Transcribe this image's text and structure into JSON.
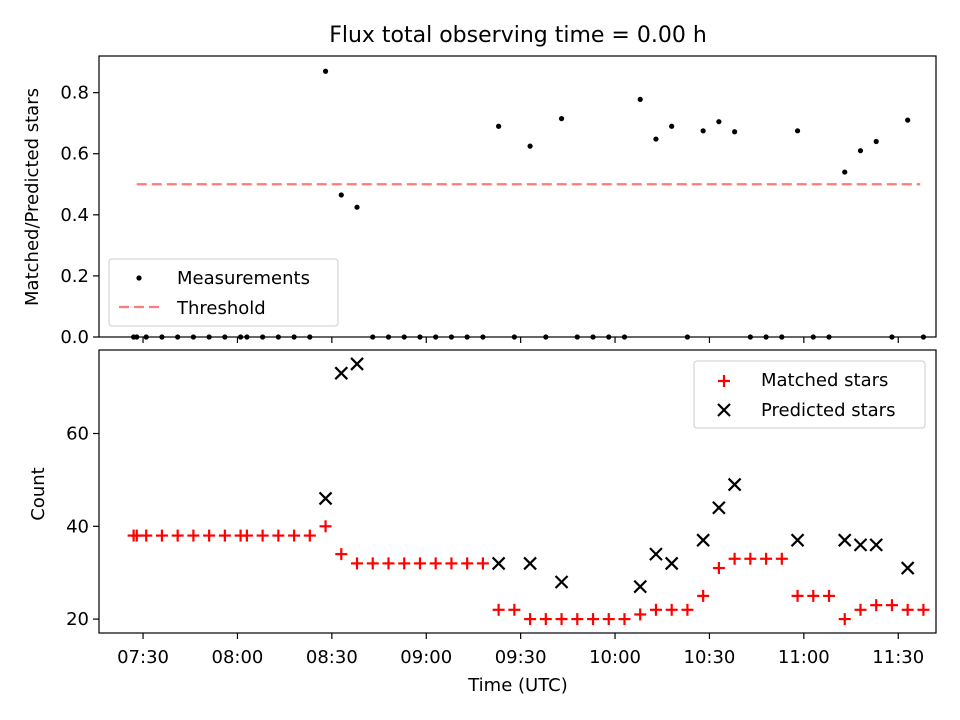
{
  "chart_data": {
    "title": "Flux total observing time = 0.00 h",
    "x_tick_labels": [
      "07:30",
      "08:00",
      "08:30",
      "09:00",
      "09:30",
      "10:00",
      "10:30",
      "11:00",
      "11:30"
    ],
    "x_ticks_min": [
      450,
      480,
      510,
      540,
      570,
      600,
      630,
      660,
      690
    ],
    "xlim_min": [
      436,
      702
    ],
    "xlabel": "Time (UTC)",
    "top": {
      "type": "scatter",
      "ylabel": "Matched/Predicted stars",
      "ylim": [
        0,
        0.92
      ],
      "y_ticks": [
        "0.0",
        "0.2",
        "0.4",
        "0.6",
        "0.8"
      ],
      "threshold": 0.5,
      "threshold_x": [
        448,
        697
      ],
      "threshold_color": "#ff7a7a",
      "legend": [
        "Measurements",
        "Threshold"
      ],
      "legend_position": "lower-left",
      "points": [
        [
          447,
          0
        ],
        [
          448,
          0
        ],
        [
          451,
          0
        ],
        [
          456,
          0
        ],
        [
          461,
          0
        ],
        [
          466,
          0
        ],
        [
          471,
          0
        ],
        [
          476,
          0
        ],
        [
          481,
          0
        ],
        [
          483,
          0
        ],
        [
          488,
          0
        ],
        [
          493,
          0
        ],
        [
          498,
          0
        ],
        [
          503,
          0
        ],
        [
          508,
          0.87
        ],
        [
          513,
          0.465
        ],
        [
          518,
          0.425
        ],
        [
          523,
          0
        ],
        [
          528,
          0
        ],
        [
          533,
          0
        ],
        [
          538,
          0
        ],
        [
          543,
          0
        ],
        [
          548,
          0
        ],
        [
          553,
          0
        ],
        [
          558,
          0
        ],
        [
          563,
          0.69
        ],
        [
          568,
          0
        ],
        [
          573,
          0.625
        ],
        [
          578,
          0
        ],
        [
          583,
          0.715
        ],
        [
          588,
          0
        ],
        [
          593,
          0
        ],
        [
          598,
          0
        ],
        [
          603,
          0
        ],
        [
          608,
          0.778
        ],
        [
          613,
          0.648
        ],
        [
          618,
          0.69
        ],
        [
          623,
          0
        ],
        [
          628,
          0.675
        ],
        [
          633,
          0.705
        ],
        [
          638,
          0.672
        ],
        [
          643,
          0
        ],
        [
          648,
          0
        ],
        [
          653,
          0
        ],
        [
          658,
          0.675
        ],
        [
          663,
          0
        ],
        [
          668,
          0
        ],
        [
          673,
          0.54
        ],
        [
          678,
          0.61
        ],
        [
          683,
          0.64
        ],
        [
          688,
          0
        ],
        [
          693,
          0.71
        ],
        [
          698,
          0
        ]
      ]
    },
    "bottom": {
      "type": "scatter",
      "ylabel": "Count",
      "ylim": [
        17,
        78
      ],
      "y_ticks": [
        20,
        40,
        60
      ],
      "legend_position": "upper-right",
      "series": [
        {
          "name": "Matched stars",
          "marker": "plus",
          "color": "#ff0000",
          "points": [
            [
              447,
              38
            ],
            [
              448,
              38
            ],
            [
              451,
              38
            ],
            [
              456,
              38
            ],
            [
              461,
              38
            ],
            [
              466,
              38
            ],
            [
              471,
              38
            ],
            [
              476,
              38
            ],
            [
              481,
              38
            ],
            [
              483,
              38
            ],
            [
              488,
              38
            ],
            [
              493,
              38
            ],
            [
              498,
              38
            ],
            [
              503,
              38
            ],
            [
              508,
              40
            ],
            [
              513,
              34
            ],
            [
              518,
              32
            ],
            [
              523,
              32
            ],
            [
              528,
              32
            ],
            [
              533,
              32
            ],
            [
              538,
              32
            ],
            [
              543,
              32
            ],
            [
              548,
              32
            ],
            [
              553,
              32
            ],
            [
              558,
              32
            ],
            [
              563,
              22
            ],
            [
              568,
              22
            ],
            [
              573,
              20
            ],
            [
              578,
              20
            ],
            [
              583,
              20
            ],
            [
              588,
              20
            ],
            [
              593,
              20
            ],
            [
              598,
              20
            ],
            [
              603,
              20
            ],
            [
              608,
              21
            ],
            [
              613,
              22
            ],
            [
              618,
              22
            ],
            [
              623,
              22
            ],
            [
              628,
              25
            ],
            [
              633,
              31
            ],
            [
              638,
              33
            ],
            [
              643,
              33
            ],
            [
              648,
              33
            ],
            [
              653,
              33
            ],
            [
              658,
              25
            ],
            [
              663,
              25
            ],
            [
              668,
              25
            ],
            [
              673,
              20
            ],
            [
              678,
              22
            ],
            [
              683,
              23
            ],
            [
              688,
              23
            ],
            [
              693,
              22
            ],
            [
              698,
              22
            ]
          ]
        },
        {
          "name": "Predicted stars",
          "marker": "x",
          "color": "#000000",
          "points": [
            [
              508,
              46
            ],
            [
              513,
              73
            ],
            [
              518,
              75
            ],
            [
              563,
              32
            ],
            [
              573,
              32
            ],
            [
              583,
              28
            ],
            [
              608,
              27
            ],
            [
              613,
              34
            ],
            [
              618,
              32
            ],
            [
              628,
              37
            ],
            [
              633,
              44
            ],
            [
              638,
              49
            ],
            [
              658,
              37
            ],
            [
              673,
              37
            ],
            [
              678,
              36
            ],
            [
              683,
              36
            ],
            [
              693,
              31
            ]
          ]
        }
      ]
    }
  }
}
